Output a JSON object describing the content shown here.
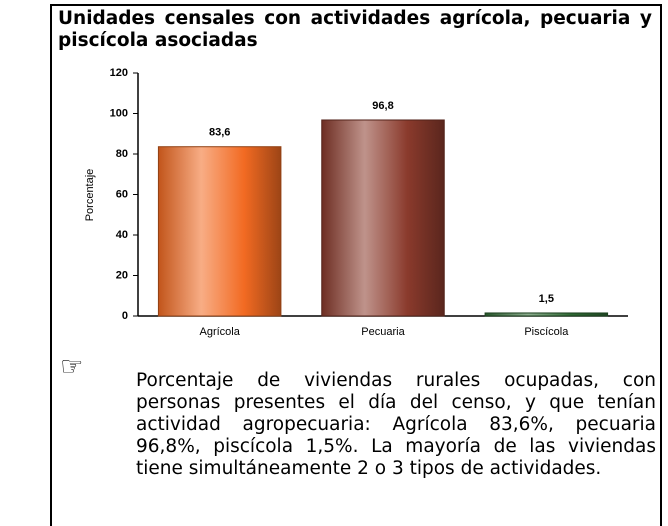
{
  "chart_data": {
    "type": "bar",
    "title": "Unidades censales con actividades agrícola, pecuaria y piscícola asociadas",
    "ylabel": "Porcentaje",
    "categories": [
      "Agrícola",
      "Pecuaria",
      "Piscícola"
    ],
    "values": [
      83.6,
      96.8,
      1.5
    ],
    "value_labels": [
      "83,6",
      "96,8",
      "1,5"
    ],
    "colors": [
      "#f26a22",
      "#8a3a2c",
      "#2f6a34"
    ],
    "ylim": [
      0,
      120
    ],
    "yticks": [
      0,
      20,
      40,
      60,
      80,
      100,
      120
    ],
    "grid": false
  },
  "note": {
    "bullet": "☞",
    "text": "Porcentaje de viviendas rurales ocupadas, con personas presentes el día del censo, y que tenían actividad agropecuaria: Agrícola 83,6%, pecuaria 96,8%, piscícola 1,5%. La mayoría de las viviendas tiene simultáneamente 2 o 3 tipos de actividades."
  }
}
